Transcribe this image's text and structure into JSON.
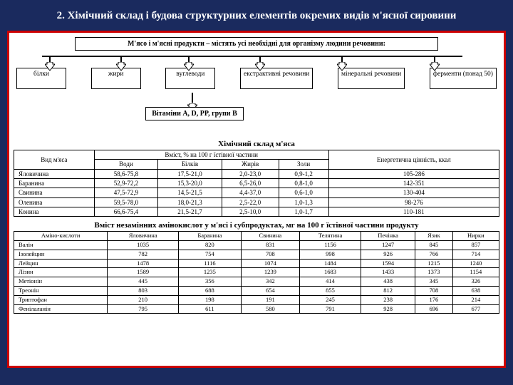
{
  "colors": {
    "slide_bg": "#1a2a5e",
    "frame_border": "#c00",
    "content_bg": "#ffffff",
    "line": "#000000",
    "title_text": "#ffffff"
  },
  "title": "2. Хімічний склад і будова структурних елементів окремих видів м'ясної сировини",
  "flow": {
    "top": "М'ясо і м'ясні продукти – містять усі необхідні для організму людини речовини:",
    "children": [
      "білки",
      "жири",
      "вуглеводи",
      "екстрактивні речовини",
      "мінеральні речовини",
      "ферменти (понад 50)"
    ],
    "vitamins": "Вітаміни A, D, PP, групи B"
  },
  "table1": {
    "title": "Хімічний склад м'яса",
    "col_meat": "Вид м'яса",
    "col_group": "Вміст, % на 100 г їстівної частини",
    "cols": [
      "Води",
      "Білків",
      "Жирів",
      "Золи"
    ],
    "col_energy": "Енергетична цінність, ккал",
    "rows": [
      {
        "meat": "Яловичина",
        "vals": [
          "58,6-75,8",
          "17,5-21,0",
          "2,0-23,0",
          "0,9-1,2"
        ],
        "e": "105-286"
      },
      {
        "meat": "Баранина",
        "vals": [
          "52,9-72,2",
          "15,3-20,0",
          "6,5-26,0",
          "0,8-1,0"
        ],
        "e": "142-351"
      },
      {
        "meat": "Свинина",
        "vals": [
          "47,5-72,9",
          "14,5-21,5",
          "4,4-37,0",
          "0,6-1,0"
        ],
        "e": "130-404"
      },
      {
        "meat": "Оленина",
        "vals": [
          "59,5-78,0",
          "18,0-21,3",
          "2,5-22,0",
          "1,0-1,3"
        ],
        "e": "98-276"
      },
      {
        "meat": "Конина",
        "vals": [
          "66,6-75,4",
          "21,5-21,7",
          "2,5-10,0",
          "1,0-1,7"
        ],
        "e": "110-181"
      }
    ]
  },
  "table2": {
    "title": "Вміст незамінних амінокислот у м'ясі і субпродуктах, мг на 100 г їстівної частини продукту",
    "col_aa": "Аміно-кислоти",
    "cols": [
      "Яловичина",
      "Баранина",
      "Свинина",
      "Телятина",
      "Печінка",
      "Язик",
      "Нирки"
    ],
    "rows": [
      {
        "aa": "Валін",
        "v": [
          "1035",
          "820",
          "831",
          "1156",
          "1247",
          "845",
          "857"
        ]
      },
      {
        "aa": "Ізолейцин",
        "v": [
          "782",
          "754",
          "708",
          "998",
          "926",
          "766",
          "714"
        ]
      },
      {
        "aa": "Лейцин",
        "v": [
          "1478",
          "1116",
          "1074",
          "1484",
          "1594",
          "1215",
          "1240"
        ]
      },
      {
        "aa": "Лізин",
        "v": [
          "1589",
          "1235",
          "1239",
          "1683",
          "1433",
          "1373",
          "1154"
        ]
      },
      {
        "aa": "Метіонін",
        "v": [
          "445",
          "356",
          "342",
          "414",
          "438",
          "345",
          "326"
        ]
      },
      {
        "aa": "Треонін",
        "v": [
          "803",
          "688",
          "654",
          "855",
          "812",
          "708",
          "638"
        ]
      },
      {
        "aa": "Триптофан",
        "v": [
          "210",
          "198",
          "191",
          "245",
          "238",
          "176",
          "214"
        ]
      },
      {
        "aa": "Фенілаланін",
        "v": [
          "795",
          "611",
          "580",
          "791",
          "928",
          "696",
          "677"
        ]
      }
    ]
  }
}
